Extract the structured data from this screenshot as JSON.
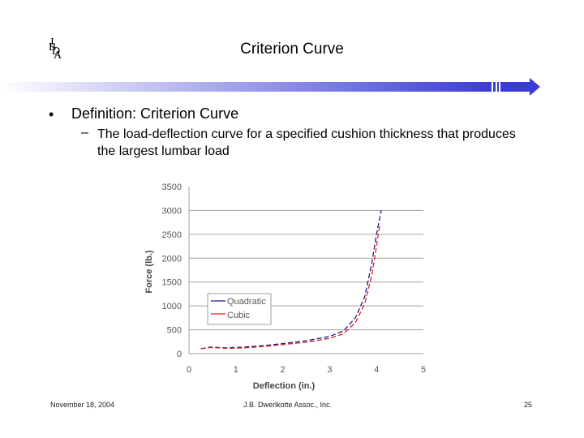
{
  "logo": {
    "letters": [
      "J",
      "B",
      "D",
      "A"
    ]
  },
  "header": {
    "title": "Criterion Curve"
  },
  "bullet": {
    "symbol": "•",
    "text": "Definition:  Criterion Curve"
  },
  "sub": {
    "dash": "–",
    "text": "The load-deflection curve for a specified cushion thickness that produces the largest lumbar load"
  },
  "colors": {
    "title_bar": "#3b3bd6",
    "quadratic": "#1a1a8c",
    "cubic": "#e0201c",
    "grid": "#a0a0a0"
  },
  "chart_data": {
    "type": "line",
    "xlabel": "Deflection (in.)",
    "ylabel": "Force (lb.)",
    "xlim": [
      0,
      5
    ],
    "ylim": [
      0,
      3500
    ],
    "xticks": [
      "0",
      "1",
      "2",
      "3",
      "4",
      "5"
    ],
    "yticks": [
      "0",
      "500",
      "1000",
      "1500",
      "2000",
      "2500",
      "3000",
      "3500"
    ],
    "grid": true,
    "legend_position": "center-left",
    "series": [
      {
        "name": "Quadratic",
        "style": "dashed",
        "x": [
          0.25,
          0.45,
          0.8,
          1.2,
          1.6,
          2.0,
          2.5,
          3.0,
          3.3,
          3.55,
          3.75,
          3.9,
          4.0,
          4.1
        ],
        "y": [
          100,
          140,
          120,
          140,
          170,
          210,
          270,
          360,
          480,
          750,
          1200,
          1900,
          2500,
          3000
        ]
      },
      {
        "name": "Cubic",
        "style": "dashed",
        "x": [
          0.25,
          0.45,
          0.8,
          1.2,
          1.6,
          2.0,
          2.5,
          3.0,
          3.3,
          3.55,
          3.75,
          3.9,
          4.0,
          4.07
        ],
        "y": [
          100,
          130,
          110,
          120,
          150,
          190,
          240,
          320,
          420,
          650,
          1050,
          1650,
          2250,
          2700
        ]
      }
    ]
  },
  "footer": {
    "date": "November 18, 2004",
    "org": "J.B. Dwerlkotte Assoc., Inc.",
    "page": "25"
  }
}
